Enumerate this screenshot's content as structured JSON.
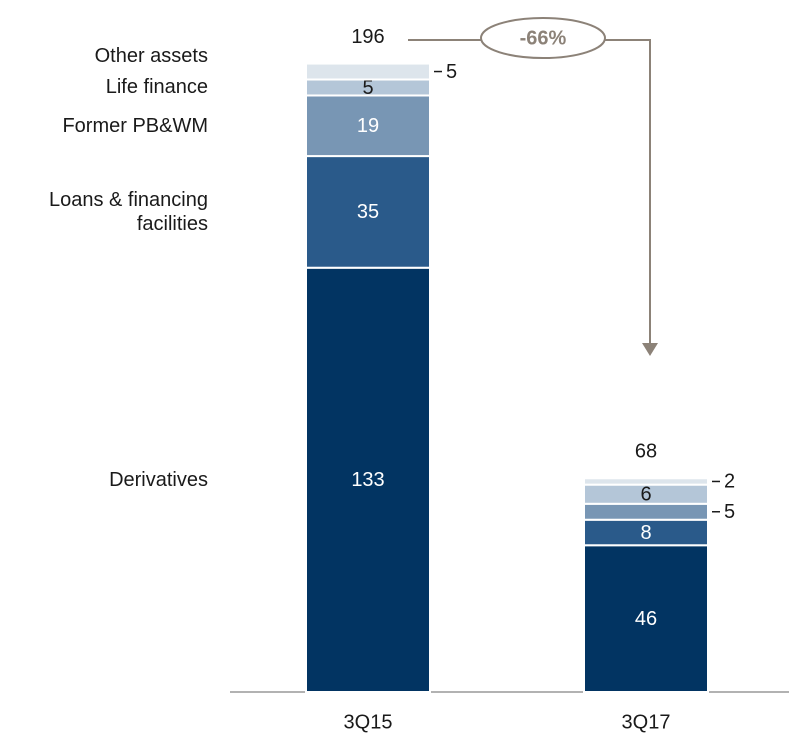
{
  "chart_data": {
    "type": "bar",
    "stacked": true,
    "categories": [
      "3Q15",
      "3Q17"
    ],
    "series": [
      {
        "name": "Derivatives",
        "color": "#023462",
        "values": [
          133,
          46
        ]
      },
      {
        "name": "Loans & financing facilities",
        "color": "#2a5a8a",
        "values": [
          35,
          8
        ]
      },
      {
        "name": "Former PB&WM",
        "color": "#7896b4",
        "values": [
          19,
          5
        ]
      },
      {
        "name": "Life finance",
        "color": "#b4c6d8",
        "values": [
          5,
          6
        ]
      },
      {
        "name": "Other assets",
        "color": "#dde5ec",
        "values": [
          5,
          2
        ]
      }
    ],
    "totals": [
      196,
      68
    ],
    "annotation": "-66%"
  }
}
